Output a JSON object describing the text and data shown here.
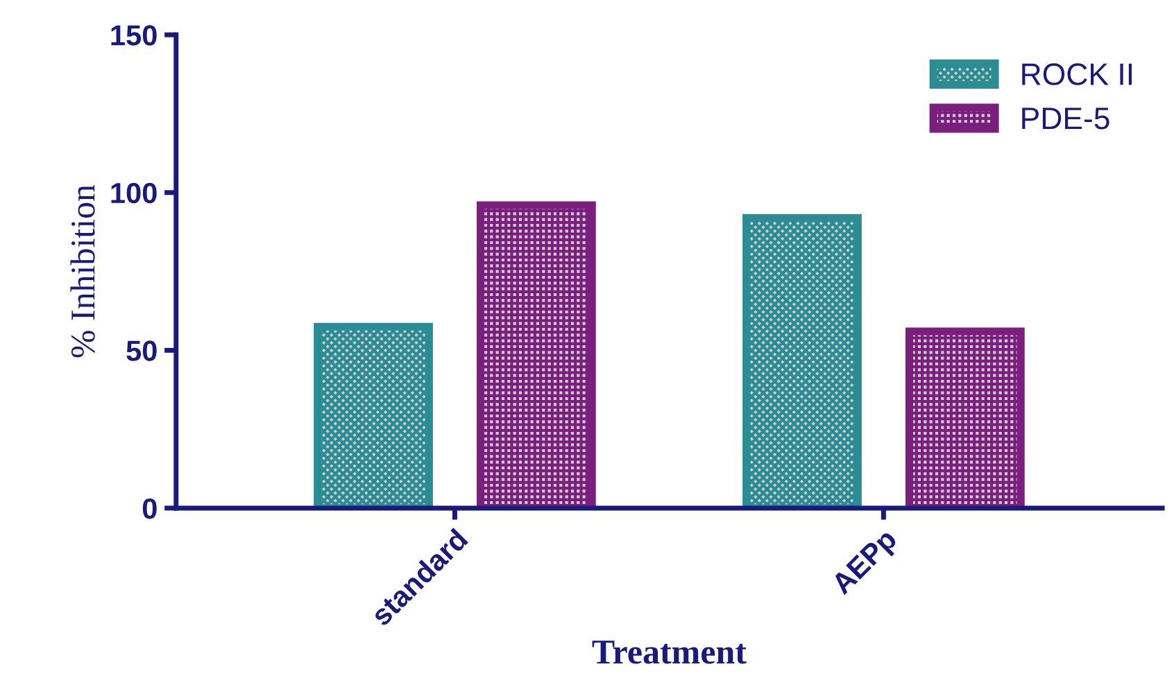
{
  "chart_data": {
    "type": "bar",
    "xlabel": "Treatment",
    "ylabel": "% Inhibition",
    "categories": [
      "standard",
      "AEPp"
    ],
    "series": [
      {
        "name": "ROCK II",
        "color": "#2b8c93",
        "values": [
          57.5,
          92
        ]
      },
      {
        "name": "PDE-5",
        "color": "#7a1f7d",
        "values": [
          96,
          56
        ]
      }
    ],
    "ylim": [
      0,
      150
    ],
    "yticks": [
      0,
      50,
      100,
      150
    ],
    "grid": false,
    "legend": "top right"
  }
}
